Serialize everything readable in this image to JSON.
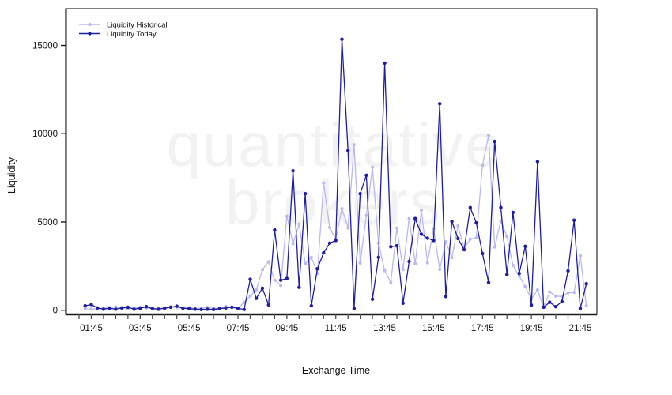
{
  "watermark": {
    "line1": "quantitative",
    "line2": "brokers",
    "color": "#f2f2f2"
  },
  "chart_data": {
    "type": "line",
    "title": "",
    "xlabel": "Exchange Time",
    "ylabel": "Liquidity",
    "legend_position": "top-left",
    "grid": false,
    "y_ticks": [
      0,
      5000,
      10000,
      15000
    ],
    "y_tick_labels": [
      "0",
      "5000",
      "10000",
      "15000"
    ],
    "ylim": [
      0,
      17080
    ],
    "x_major_tick_labels": [
      "01:45",
      "03:45",
      "05:45",
      "07:45",
      "09:45",
      "11:45",
      "13:45",
      "15:45",
      "17:45",
      "19:45",
      "21:45"
    ],
    "x_minor_tick_interval_minutes": 30,
    "x_minor_tick_range": [
      "01:15",
      "21:45"
    ],
    "xlim_hours": [
      0.7,
      22.43
    ],
    "axis_color": "#1a1a1a",
    "times": [
      "01:30",
      "01:45",
      "02:00",
      "02:15",
      "02:30",
      "02:45",
      "03:00",
      "03:15",
      "03:30",
      "03:45",
      "04:00",
      "04:15",
      "04:30",
      "04:45",
      "05:00",
      "05:15",
      "05:30",
      "05:45",
      "06:00",
      "06:15",
      "06:30",
      "06:45",
      "07:00",
      "07:15",
      "07:30",
      "07:45",
      "08:00",
      "08:15",
      "08:30",
      "08:45",
      "09:00",
      "09:15",
      "09:30",
      "09:45",
      "10:00",
      "10:15",
      "10:30",
      "10:45",
      "11:00",
      "11:15",
      "11:30",
      "11:45",
      "12:00",
      "12:15",
      "12:30",
      "12:45",
      "13:00",
      "13:15",
      "13:30",
      "13:45",
      "14:00",
      "14:15",
      "14:30",
      "14:45",
      "15:00",
      "15:15",
      "15:30",
      "15:45",
      "16:00",
      "16:15",
      "16:30",
      "16:45",
      "17:00",
      "17:15",
      "17:30",
      "17:45",
      "18:00",
      "18:15",
      "18:30",
      "18:45",
      "19:00",
      "19:15",
      "19:30",
      "19:45",
      "20:00",
      "20:15",
      "20:30",
      "20:45",
      "21:00",
      "21:15",
      "21:30",
      "21:45",
      "22:00"
    ],
    "series": [
      {
        "name": "Liquidity Historical",
        "color": "#b9b9ef",
        "marker_radius": 2.0,
        "values": [
          100,
          60,
          90,
          110,
          150,
          190,
          110,
          90,
          130,
          170,
          130,
          110,
          90,
          130,
          190,
          150,
          110,
          130,
          90,
          110,
          150,
          110,
          90,
          220,
          150,
          110,
          450,
          800,
          1160,
          2290,
          2750,
          1700,
          1400,
          5330,
          3770,
          4880,
          2640,
          3000,
          2080,
          7210,
          4690,
          4000,
          5760,
          4660,
          9380,
          2670,
          5370,
          8100,
          3800,
          2240,
          1570,
          4660,
          2310,
          5190,
          2640,
          5670,
          2690,
          4620,
          2310,
          3880,
          2980,
          4780,
          3510,
          4030,
          4100,
          8210,
          9910,
          3580,
          5070,
          4180,
          2540,
          1940,
          1340,
          630,
          1150,
          170,
          1040,
          800,
          780,
          980,
          1010,
          3090,
          250
        ]
      },
      {
        "name": "Liquidity Today",
        "color": "#1e1ea0",
        "marker_radius": 2.2,
        "values": [
          250,
          320,
          130,
          60,
          110,
          60,
          130,
          170,
          60,
          110,
          200,
          90,
          60,
          110,
          170,
          230,
          110,
          90,
          60,
          40,
          60,
          40,
          90,
          130,
          170,
          110,
          40,
          1750,
          670,
          1250,
          300,
          4550,
          1700,
          1800,
          7900,
          1300,
          6600,
          250,
          2350,
          3250,
          3800,
          3950,
          15350,
          9050,
          100,
          6600,
          7650,
          620,
          3000,
          14000,
          3600,
          3650,
          400,
          2760,
          5190,
          4310,
          4080,
          3950,
          11700,
          780,
          5030,
          4060,
          3430,
          5820,
          4950,
          3210,
          1570,
          9560,
          5820,
          2020,
          5540,
          2080,
          3620,
          290,
          8420,
          170,
          450,
          200,
          500,
          2230,
          5100,
          100,
          1500
        ]
      }
    ]
  }
}
